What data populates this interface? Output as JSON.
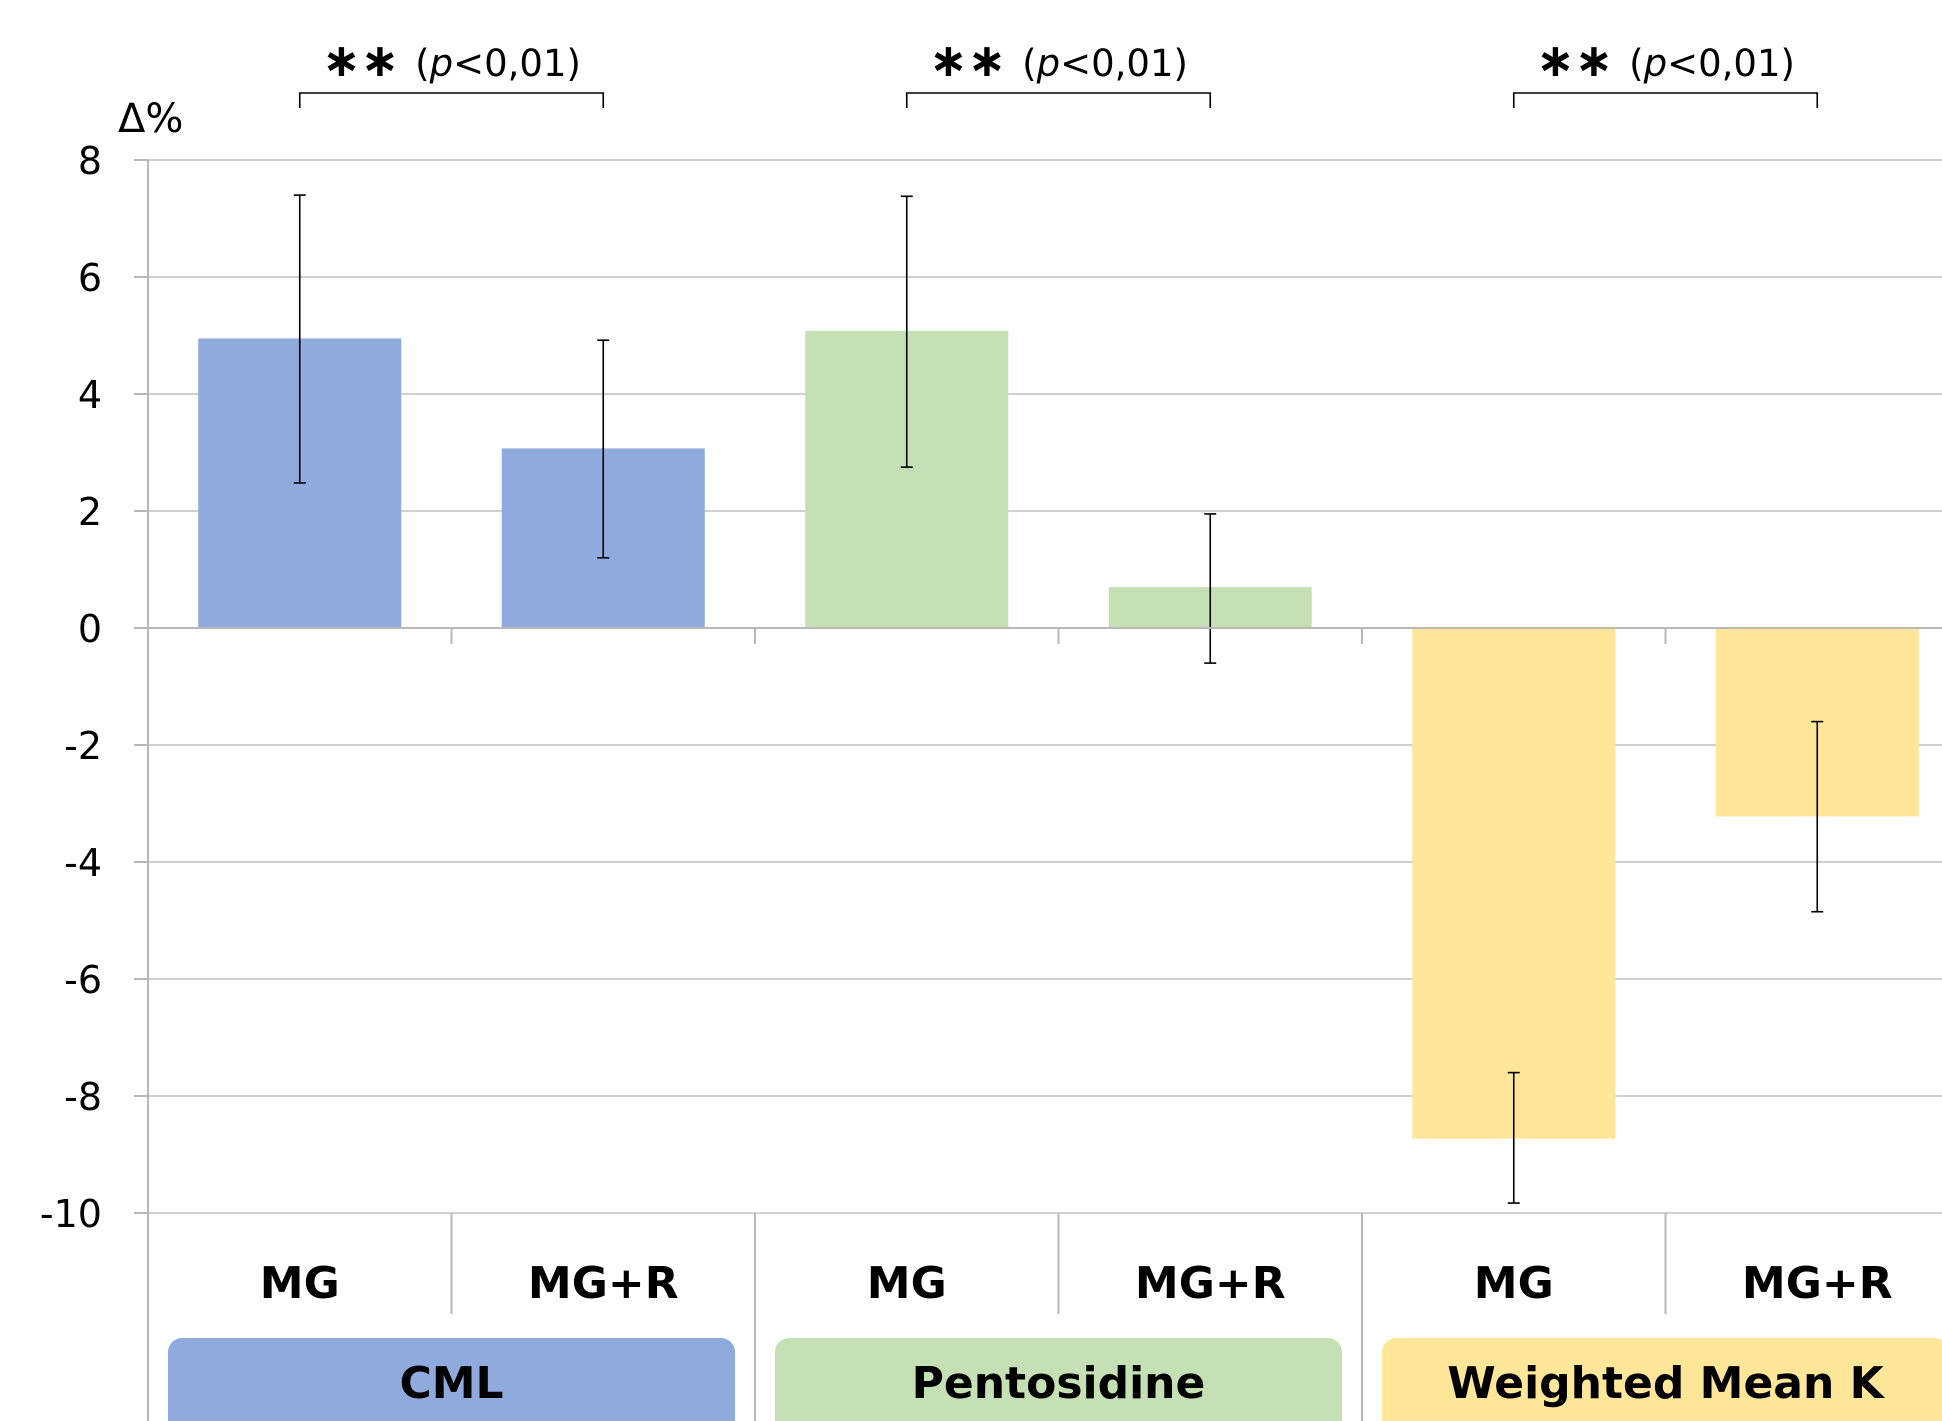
{
  "chart_data": {
    "type": "bar",
    "ylabel": "Δ%",
    "ylim": [
      -10,
      8
    ],
    "yticks": [
      8,
      6,
      4,
      2,
      0,
      -2,
      -4,
      -6,
      -8,
      -10
    ],
    "grid": true,
    "groups": [
      {
        "name": "CML",
        "color": "#8faadc",
        "significance": {
          "stars": "∗∗",
          "p_prefix": "(",
          "p_var": "p",
          "p_text": "<0,01)"
        },
        "bars": [
          {
            "category": "MG",
            "value": 4.95,
            "err_low": 2.48,
            "err_high": 7.4
          },
          {
            "category": "MG+R",
            "value": 3.07,
            "err_low": 1.2,
            "err_high": 4.92
          }
        ]
      },
      {
        "name": "Pentosidine",
        "color": "#c5e0b4",
        "significance": {
          "stars": "∗∗",
          "p_prefix": "(",
          "p_var": "p",
          "p_text": "<0,01)"
        },
        "bars": [
          {
            "category": "MG",
            "value": 5.08,
            "err_low": 2.75,
            "err_high": 7.38
          },
          {
            "category": "MG+R",
            "value": 0.7,
            "err_low": -0.6,
            "err_high": 1.95
          }
        ]
      },
      {
        "name": "Weighted Mean K",
        "color": "#ffe699",
        "significance": {
          "stars": "∗∗",
          "p_prefix": "(",
          "p_var": "p",
          "p_text": "<0,01)"
        },
        "bars": [
          {
            "category": "MG",
            "value": -8.73,
            "err_low": -9.83,
            "err_high": -7.6
          },
          {
            "category": "MG+R",
            "value": -3.22,
            "err_low": -4.85,
            "err_high": -1.6
          }
        ]
      }
    ]
  }
}
